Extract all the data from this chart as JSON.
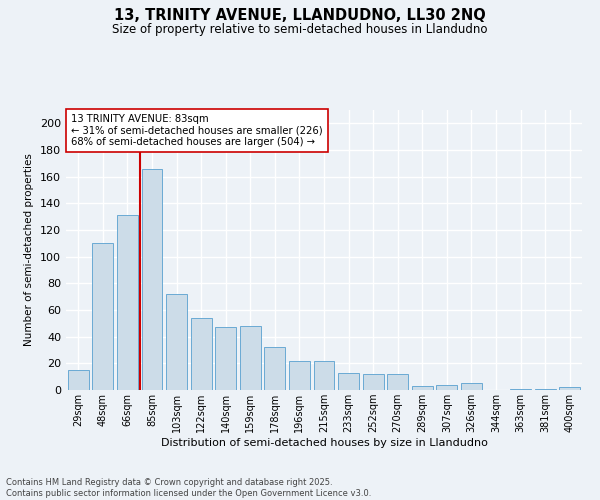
{
  "title_line1": "13, TRINITY AVENUE, LLANDUDNO, LL30 2NQ",
  "title_line2": "Size of property relative to semi-detached houses in Llandudno",
  "xlabel": "Distribution of semi-detached houses by size in Llandudno",
  "ylabel": "Number of semi-detached properties",
  "categories": [
    "29sqm",
    "48sqm",
    "66sqm",
    "85sqm",
    "103sqm",
    "122sqm",
    "140sqm",
    "159sqm",
    "178sqm",
    "196sqm",
    "215sqm",
    "233sqm",
    "252sqm",
    "270sqm",
    "289sqm",
    "307sqm",
    "326sqm",
    "344sqm",
    "363sqm",
    "381sqm",
    "400sqm"
  ],
  "values": [
    15,
    110,
    131,
    166,
    72,
    54,
    47,
    48,
    32,
    22,
    22,
    13,
    12,
    12,
    3,
    4,
    5,
    0,
    1,
    1,
    2
  ],
  "bar_color": "#ccdce8",
  "bar_edge_color": "#6aaad4",
  "vline_x_index": 3,
  "vline_color": "#cc0000",
  "annotation_title": "13 TRINITY AVENUE: 83sqm",
  "annotation_line1": "← 31% of semi-detached houses are smaller (226)",
  "annotation_line2": "68% of semi-detached houses are larger (504) →",
  "annotation_box_facecolor": "#ffffff",
  "annotation_box_edgecolor": "#cc0000",
  "ylim": [
    0,
    210
  ],
  "yticks": [
    0,
    20,
    40,
    60,
    80,
    100,
    120,
    140,
    160,
    180,
    200
  ],
  "background_color": "#edf2f7",
  "grid_color": "#ffffff",
  "footnote": "Contains HM Land Registry data © Crown copyright and database right 2025.\nContains public sector information licensed under the Open Government Licence v3.0."
}
